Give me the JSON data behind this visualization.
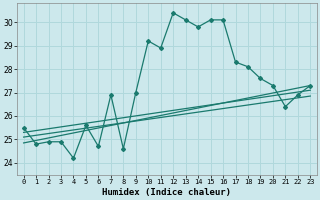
{
  "xlabel": "Humidex (Indice chaleur)",
  "background_color": "#cce8ec",
  "grid_color": "#b0d8dc",
  "line_color": "#1a7a6e",
  "xlim": [
    -0.5,
    23.5
  ],
  "ylim": [
    23.5,
    30.8
  ],
  "yticks": [
    24,
    25,
    26,
    27,
    28,
    29,
    30
  ],
  "xticks": [
    0,
    1,
    2,
    3,
    4,
    5,
    6,
    7,
    8,
    9,
    10,
    11,
    12,
    13,
    14,
    15,
    16,
    17,
    18,
    19,
    20,
    21,
    22,
    23
  ],
  "series1_x": [
    0,
    1,
    2,
    3,
    4,
    5,
    6,
    7,
    8,
    9,
    10,
    11,
    12,
    13,
    14,
    15,
    16,
    17,
    18,
    19,
    20,
    21,
    22,
    23
  ],
  "series1_y": [
    25.5,
    24.8,
    24.9,
    24.9,
    24.2,
    25.6,
    24.7,
    26.9,
    24.6,
    27.0,
    29.2,
    28.9,
    30.4,
    30.1,
    29.8,
    30.1,
    30.1,
    28.3,
    28.1,
    27.6,
    27.3,
    26.4,
    26.9,
    27.3
  ],
  "series2_x": [
    0,
    23
  ],
  "series2_y": [
    25.3,
    27.1
  ],
  "series3_x": [
    0,
    23
  ],
  "series3_y": [
    25.1,
    26.85
  ],
  "series4_x": [
    0,
    23
  ],
  "series4_y": [
    24.85,
    27.3
  ],
  "xlabel_fontsize": 6.5,
  "tick_fontsize": 5.0,
  "linewidth": 0.9,
  "markersize": 2.0
}
